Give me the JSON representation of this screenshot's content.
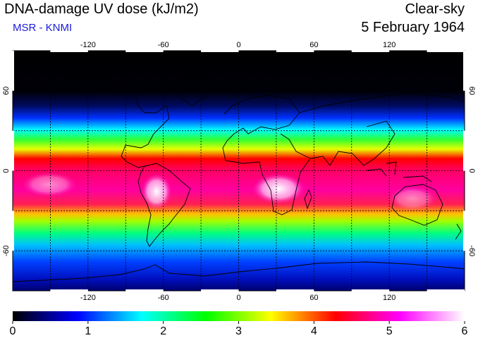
{
  "header": {
    "title": "DNA-damage UV dose (kJ/m2)",
    "subtitle": "MSR - KNMI",
    "mode": "Clear-sky",
    "date": "5 February 1964"
  },
  "map": {
    "longitude_ticks": [
      "-120",
      "-60",
      "0",
      "60",
      "120"
    ],
    "latitude_ticks_left": [
      "60",
      "0",
      "-60"
    ],
    "latitude_ticks_right": [
      "60",
      "0",
      "-60"
    ],
    "graticule_longitudes": [
      -150,
      -120,
      -90,
      -60,
      -30,
      0,
      30,
      60,
      90,
      120,
      150
    ],
    "graticule_latitudes": [
      60,
      30,
      0,
      -30,
      -60
    ]
  },
  "colorbar": {
    "labels": [
      "0",
      "1",
      "2",
      "3",
      "4",
      "5",
      "6"
    ],
    "min": 0,
    "max": 6,
    "colors": [
      "#000000",
      "#0000ff",
      "#00ffff",
      "#00ff00",
      "#ffff00",
      "#ff0000",
      "#ff00ff",
      "#ffffff"
    ]
  }
}
